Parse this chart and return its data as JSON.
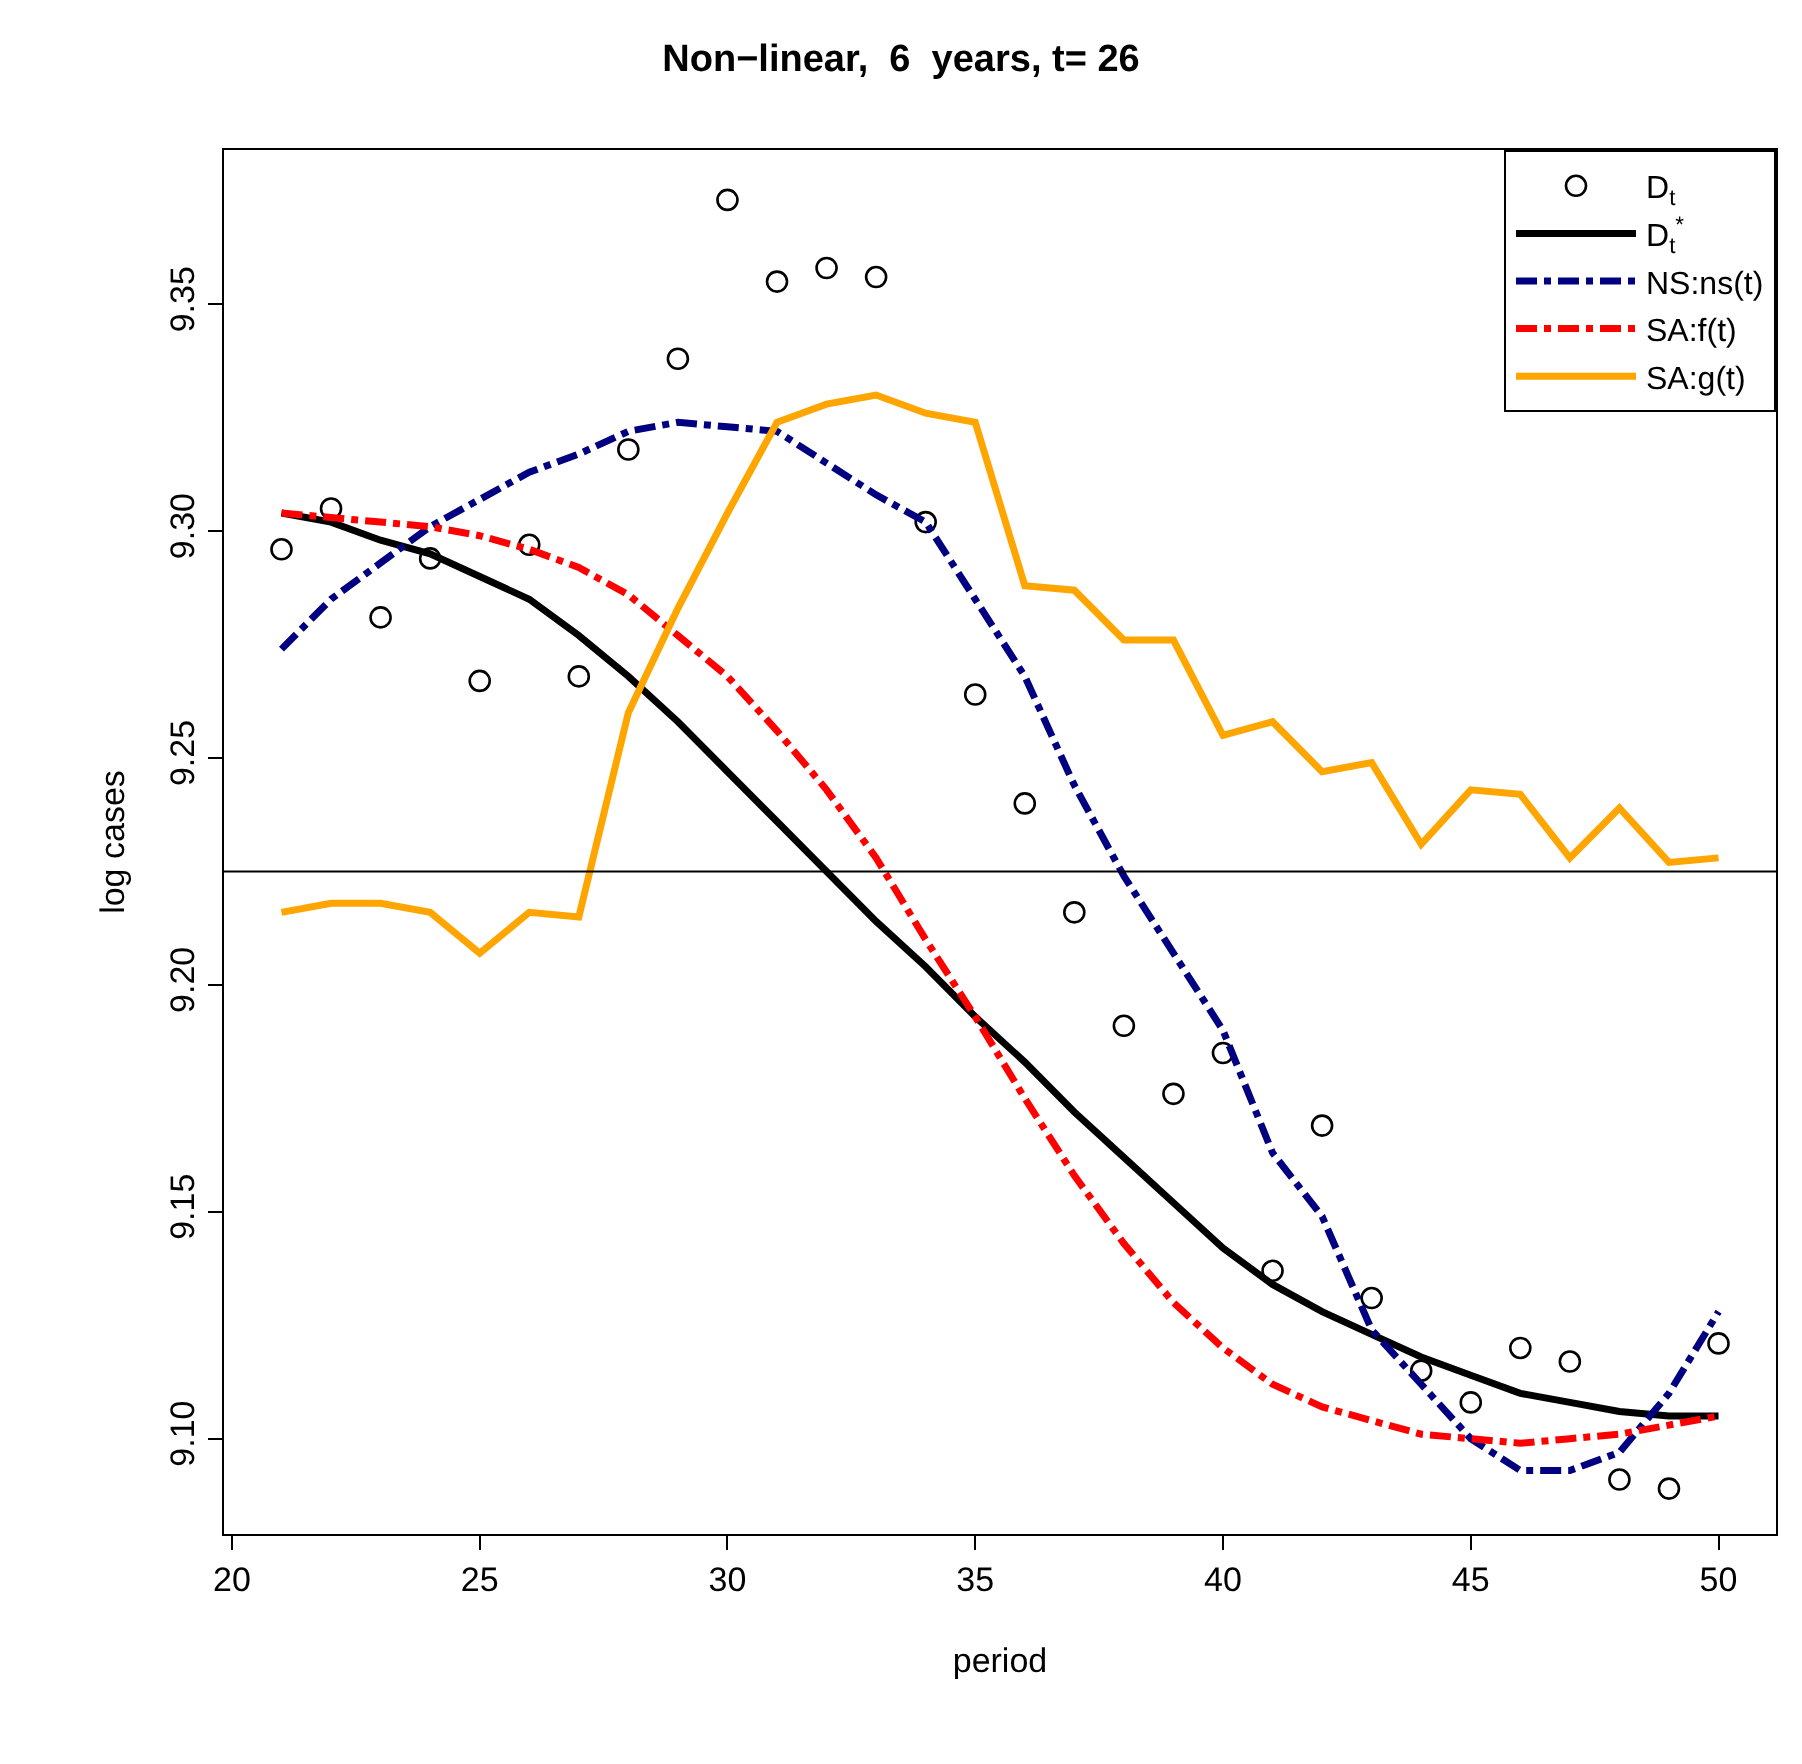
{
  "chart_data": {
    "type": "line",
    "title": "Non−linear,  6  years, t= 26",
    "xlabel": "period",
    "ylabel": "log cases",
    "x": [
      21,
      22,
      23,
      24,
      25,
      26,
      27,
      28,
      29,
      30,
      31,
      32,
      33,
      34,
      35,
      36,
      37,
      38,
      39,
      40,
      41,
      42,
      43,
      44,
      45,
      46,
      47,
      48,
      49,
      50
    ],
    "xlim": [
      19.84,
      51.16
    ],
    "xticks": [
      20,
      25,
      30,
      35,
      40,
      45,
      50
    ],
    "ylim": [
      9.079,
      9.384
    ],
    "yticks": [
      {
        "value": 9.1,
        "label": "9.10"
      },
      9.15,
      {
        "value": 9.2,
        "label": "9.20"
      },
      9.25,
      {
        "value": 9.3,
        "label": "9.30"
      },
      9.35
    ],
    "legend": "top right",
    "ref_lines": [
      {
        "axis": "y",
        "value": 9.225,
        "color": "#000000"
      }
    ],
    "series": [
      {
        "name": "D$_{t}$",
        "type": "scatter",
        "marker": "circle",
        "color": "#000000",
        "values": [
          9.296,
          9.305,
          9.281,
          9.294,
          9.267,
          9.297,
          9.268,
          9.318,
          9.338,
          9.373,
          9.355,
          9.358,
          9.356,
          9.302,
          9.264,
          9.24,
          9.216,
          9.191,
          9.176,
          9.185,
          9.137,
          9.169,
          9.131,
          9.115,
          9.108,
          9.12,
          9.117,
          9.091,
          9.089,
          9.121
        ]
      },
      {
        "name": "D$_{t}$$^{*}$",
        "line_style": "solid",
        "color": "#000000",
        "values": [
          9.304,
          9.302,
          9.298,
          9.295,
          9.29,
          9.285,
          9.277,
          9.268,
          9.258,
          9.247,
          9.236,
          9.225,
          9.214,
          9.204,
          9.193,
          9.183,
          9.172,
          9.162,
          9.152,
          9.142,
          9.134,
          9.128,
          9.123,
          9.118,
          9.114,
          9.11,
          9.108,
          9.106,
          9.105,
          9.105
        ]
      },
      {
        "name": "NS:ns(t)",
        "line_style": "dashed",
        "color": "#000080",
        "values": [
          9.274,
          9.285,
          9.293,
          9.301,
          9.307,
          9.313,
          9.317,
          9.322,
          9.324,
          9.323,
          9.322,
          9.315,
          9.308,
          9.302,
          9.285,
          9.268,
          9.244,
          9.224,
          9.207,
          9.19,
          9.163,
          9.149,
          9.124,
          9.112,
          9.1,
          9.093,
          9.093,
          9.097,
          9.11,
          9.128
        ]
      },
      {
        "name": "SA:f(t)",
        "line_style": "dashed",
        "color": "#ff0000",
        "values": [
          9.304,
          9.303,
          9.302,
          9.301,
          9.299,
          9.296,
          9.292,
          9.286,
          9.277,
          9.268,
          9.256,
          9.243,
          9.228,
          9.21,
          9.193,
          9.175,
          9.158,
          9.143,
          9.13,
          9.12,
          9.112,
          9.107,
          9.104,
          9.101,
          9.1,
          9.099,
          9.1,
          9.101,
          9.103,
          9.105
        ]
      },
      {
        "name": "SA:g(t)",
        "line_style": "solid",
        "color": "#ffa500",
        "values": [
          9.216,
          9.218,
          9.218,
          9.216,
          9.207,
          9.216,
          9.215,
          9.26,
          9.283,
          9.304,
          9.324,
          9.328,
          9.33,
          9.326,
          9.324,
          9.288,
          9.287,
          9.276,
          9.276,
          9.255,
          9.258,
          9.247,
          9.249,
          9.231,
          9.243,
          9.242,
          9.228,
          9.239,
          9.227,
          9.228
        ]
      }
    ]
  }
}
